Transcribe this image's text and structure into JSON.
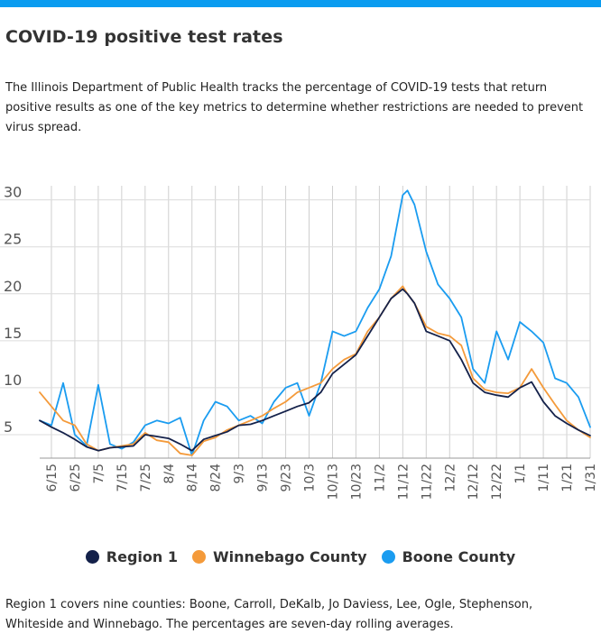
{
  "header": {
    "title": "COVID-19 positive test rates",
    "description": "The Illinois Department of Public Health tracks the percentage of COVID-19 tests that return positive results as one of the key metrics to determine whether restrictions are needed to prevent virus spread."
  },
  "footnote": "Region 1 covers nine counties: Boone, Carroll, DeKalb, Jo Daviess, Lee, Ogle, Stephenson, Whiteside and Winnebago. The percentages are seven-day rolling averages.",
  "colors": {
    "accent": "#0a9cf0",
    "region1": "#14214a",
    "winnebago": "#f49a3a",
    "boone": "#1a9cf0"
  },
  "chart_data": {
    "type": "line",
    "title": "",
    "xlabel": "",
    "ylabel": "",
    "x_start": "6/10",
    "x_end": "1/31",
    "x_ticks": [
      "6/15",
      "6/25",
      "7/5",
      "7/15",
      "7/25",
      "8/4",
      "8/14",
      "8/24",
      "9/3",
      "9/13",
      "9/23",
      "10/3",
      "10/13",
      "10/23",
      "11/2",
      "11/12",
      "11/22",
      "12/2",
      "12/12",
      "12/22",
      "1/1",
      "1/11",
      "1/21",
      "1/31"
    ],
    "y_ticks": [
      5,
      10,
      15,
      20,
      25,
      30
    ],
    "ylim": [
      2.5,
      31.5
    ],
    "grid": true,
    "legend_position": "bottom",
    "x": [
      "6/10",
      "6/15",
      "6/20",
      "6/25",
      "6/30",
      "7/5",
      "7/10",
      "7/15",
      "7/20",
      "7/25",
      "7/30",
      "8/4",
      "8/9",
      "8/14",
      "8/19",
      "8/24",
      "8/29",
      "9/3",
      "9/8",
      "9/13",
      "9/18",
      "9/23",
      "9/28",
      "10/3",
      "10/8",
      "10/13",
      "10/18",
      "10/23",
      "10/28",
      "11/2",
      "11/7",
      "11/12",
      "11/14",
      "11/17",
      "11/22",
      "11/27",
      "12/2",
      "12/7",
      "12/12",
      "12/17",
      "12/22",
      "12/27",
      "1/1",
      "1/6",
      "1/11",
      "1/16",
      "1/21",
      "1/26",
      "1/31"
    ],
    "series": [
      {
        "name": "Region 1",
        "color": "#14214a",
        "values": [
          6.5,
          5.8,
          5.2,
          4.5,
          3.7,
          3.3,
          3.6,
          3.7,
          3.8,
          5.0,
          4.8,
          4.6,
          4.0,
          3.3,
          4.5,
          4.9,
          5.3,
          6.0,
          6.1,
          6.5,
          7.0,
          7.5,
          8.0,
          8.4,
          9.5,
          11.5,
          12.5,
          13.5,
          15.5,
          17.5,
          19.5,
          20.5,
          20.0,
          19.0,
          16.0,
          15.5,
          15.0,
          13.0,
          10.5,
          9.5,
          9.2,
          9.0,
          10.0,
          10.6,
          8.5,
          7.0,
          6.2,
          5.5,
          4.9
        ]
      },
      {
        "name": "Winnebago County",
        "color": "#f49a3a",
        "values": [
          9.5,
          8.0,
          6.5,
          6.0,
          4.0,
          3.3,
          3.6,
          3.8,
          4.0,
          5.2,
          4.4,
          4.2,
          3.0,
          2.8,
          4.3,
          4.7,
          5.5,
          6.0,
          6.5,
          7.0,
          7.8,
          8.5,
          9.5,
          10.0,
          10.5,
          12.0,
          13.0,
          13.6,
          16.0,
          17.5,
          19.5,
          20.8,
          20.0,
          19.0,
          16.5,
          15.8,
          15.5,
          14.5,
          11.0,
          9.8,
          9.5,
          9.4,
          10.0,
          12.0,
          10.0,
          8.2,
          6.5,
          5.5,
          4.7
        ]
      },
      {
        "name": "Boone County",
        "color": "#1a9cf0",
        "values": [
          6.5,
          6.0,
          10.5,
          5.0,
          3.8,
          10.3,
          4.0,
          3.5,
          4.2,
          6.0,
          6.5,
          6.2,
          6.8,
          2.8,
          6.5,
          8.5,
          8.0,
          6.5,
          7.0,
          6.2,
          8.5,
          10.0,
          10.5,
          7.0,
          10.5,
          16.0,
          15.5,
          16.0,
          18.5,
          20.5,
          24.0,
          30.5,
          31.0,
          29.5,
          24.5,
          21.0,
          19.5,
          17.5,
          12.0,
          10.5,
          16.0,
          13.0,
          17.0,
          16.0,
          14.8,
          11.0,
          10.5,
          9.0,
          5.8
        ]
      }
    ]
  }
}
